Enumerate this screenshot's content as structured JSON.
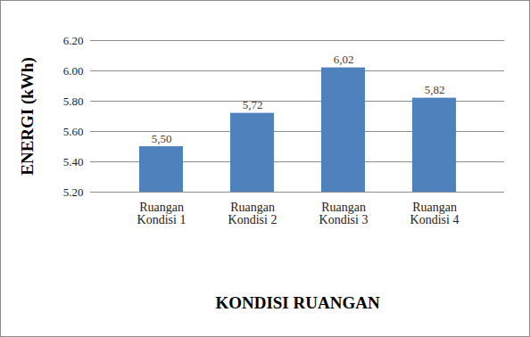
{
  "chart_data": {
    "type": "bar",
    "categories": [
      "Ruangan\nKondisi 1",
      "Ruangan\nKondisi 2",
      "Ruangan\nKondisi 3",
      "Ruangan\nKondisi 4"
    ],
    "values": [
      5.5,
      5.72,
      6.02,
      5.82
    ],
    "value_labels": [
      "5,50",
      "5,72",
      "6,02",
      "5,82"
    ],
    "data_labels": true,
    "color": "#4f81bd",
    "x_label": "KONDISI RUANGAN",
    "y_label": "ENERGI (kWh)",
    "ylim": [
      5.2,
      6.2
    ],
    "yticks": [
      {
        "value": 5.2,
        "label": "5.20"
      },
      {
        "value": 5.4,
        "label": "5.40"
      },
      {
        "value": 5.6,
        "label": "5.60"
      },
      {
        "value": 5.8,
        "label": "5.80"
      },
      {
        "value": 6.0,
        "label": "6.00"
      },
      {
        "value": 6.2,
        "label": "6.20"
      }
    ],
    "grid": true
  }
}
